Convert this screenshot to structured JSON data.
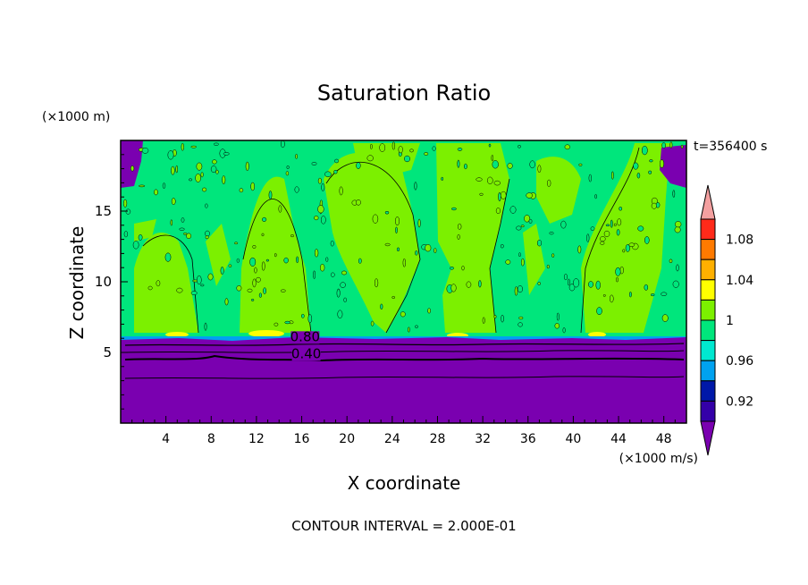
{
  "chart_data": {
    "type": "filled-contour",
    "title": "Saturation Ratio",
    "xlabel": "X coordinate",
    "ylabel": "Z coordinate",
    "x_unit": "(×1000 m/s)",
    "y_unit": "(×1000 m)",
    "time_label": "t=356400 s",
    "footer": "CONTOUR INTERVAL = 2.000E-01",
    "xlim": [
      0,
      50
    ],
    "ylim": [
      0,
      20
    ],
    "x_ticks": [
      4,
      8,
      12,
      16,
      20,
      24,
      28,
      32,
      36,
      40,
      44,
      48
    ],
    "y_ticks": [
      5,
      10,
      15
    ],
    "contour_labels": [
      {
        "text": "0.80",
        "x": 16.3,
        "z": 5.8
      },
      {
        "text": "0.40",
        "x": 16.4,
        "z": 4.6
      }
    ],
    "colorbar": {
      "tick_labels": [
        "1.08",
        "1.04",
        "1",
        "0.96",
        "0.92"
      ],
      "levels": [
        {
          "lo": 1.1,
          "hi": null,
          "color": "#f4a0a0"
        },
        {
          "lo": 1.08,
          "hi": 1.1,
          "color": "#ff2a1a"
        },
        {
          "lo": 1.06,
          "hi": 1.08,
          "color": "#ff7a00"
        },
        {
          "lo": 1.04,
          "hi": 1.06,
          "color": "#ffb000"
        },
        {
          "lo": 1.02,
          "hi": 1.04,
          "color": "#ffff00"
        },
        {
          "lo": 1.0,
          "hi": 1.02,
          "color": "#7cf000"
        },
        {
          "lo": 0.98,
          "hi": 1.0,
          "color": "#00e67c"
        },
        {
          "lo": 0.96,
          "hi": 0.98,
          "color": "#00e8d0"
        },
        {
          "lo": 0.94,
          "hi": 0.96,
          "color": "#00a2f0"
        },
        {
          "lo": 0.92,
          "hi": 0.94,
          "color": "#0018a8"
        },
        {
          "lo": 0.9,
          "hi": 0.92,
          "color": "#3400a8"
        },
        {
          "lo": null,
          "hi": 0.9,
          "color": "#7a00b0"
        }
      ]
    },
    "regions": {
      "dry_layer_top_z": 6.0,
      "saturated_plumes_x": [
        5,
        13,
        23,
        30,
        42
      ],
      "supersaturated_patches_x": [
        5,
        13,
        30,
        42
      ],
      "upper_layer_value": "≈0.98–1.02"
    }
  }
}
